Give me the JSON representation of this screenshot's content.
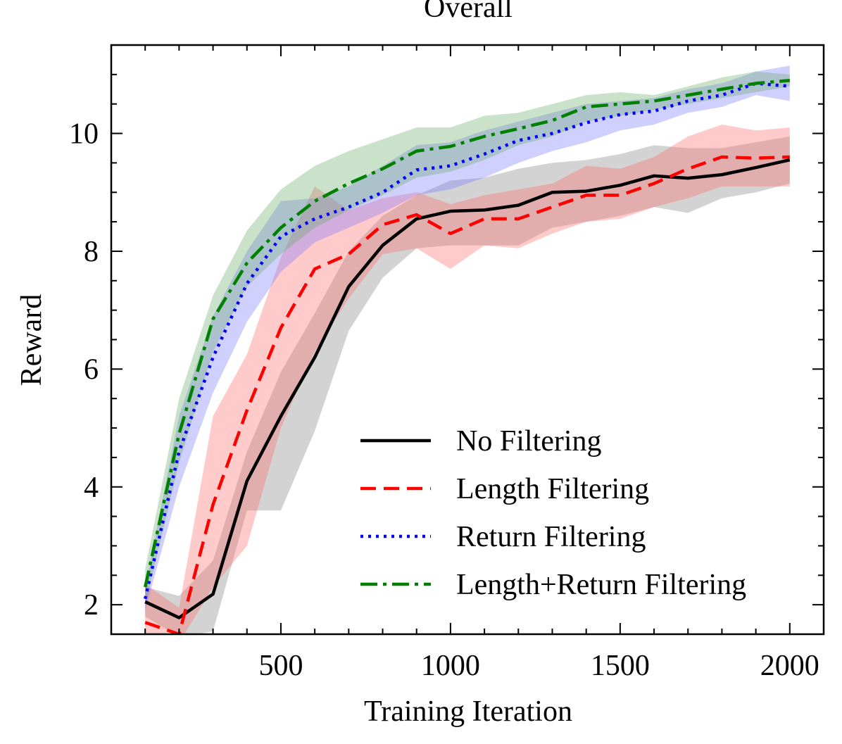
{
  "chart_data": {
    "type": "line",
    "title": "Overall",
    "xlabel": "Training Iteration",
    "ylabel": "Reward",
    "xlim": [
      0,
      2100
    ],
    "ylim": [
      1.5,
      11.5
    ],
    "xticks": [
      500,
      1000,
      1500,
      2000
    ],
    "xtick_labels": [
      "500",
      "1000",
      "1500",
      "2000"
    ],
    "yticks": [
      2,
      4,
      6,
      8,
      10
    ],
    "ytick_labels": [
      "2",
      "4",
      "6",
      "8",
      "10"
    ],
    "grid": false,
    "legend_position": "lower-right",
    "x": [
      100,
      200,
      300,
      400,
      500,
      600,
      700,
      800,
      900,
      1000,
      1100,
      1200,
      1300,
      1400,
      1500,
      1600,
      1700,
      1800,
      1900,
      2000
    ],
    "series": [
      {
        "name": "No Filtering",
        "color": "#000000",
        "band_color": "#808080",
        "style": "solid",
        "values": [
          2.05,
          1.78,
          2.18,
          4.1,
          5.2,
          6.2,
          7.4,
          8.1,
          8.55,
          8.68,
          8.7,
          8.78,
          9.0,
          9.02,
          9.12,
          9.28,
          9.24,
          9.3,
          9.42,
          9.55
        ],
        "upper": [
          2.3,
          2.15,
          2.75,
          4.6,
          5.95,
          6.95,
          8.0,
          8.6,
          8.95,
          9.2,
          9.25,
          9.4,
          9.5,
          9.55,
          9.65,
          9.8,
          9.75,
          9.75,
          9.85,
          9.95
        ],
        "lower": [
          1.8,
          1.45,
          1.55,
          3.6,
          3.6,
          4.95,
          6.65,
          7.55,
          8.05,
          8.1,
          8.1,
          8.1,
          8.4,
          8.5,
          8.6,
          8.75,
          8.65,
          8.9,
          9.0,
          9.15
        ]
      },
      {
        "name": "Length Filtering",
        "color": "#ff0000",
        "band_color": "#ff6666",
        "style": "dashed",
        "values": [
          1.7,
          1.5,
          3.7,
          5.3,
          6.7,
          7.7,
          7.95,
          8.45,
          8.62,
          8.3,
          8.55,
          8.55,
          8.75,
          8.95,
          8.95,
          9.15,
          9.4,
          9.6,
          9.58,
          9.6
        ],
        "upper": [
          2.35,
          1.95,
          5.2,
          6.25,
          7.9,
          9.1,
          8.7,
          8.9,
          9.0,
          8.8,
          8.95,
          9.05,
          9.15,
          9.45,
          9.4,
          9.6,
          9.95,
          10.15,
          10.05,
          10.1
        ],
        "lower": [
          1.4,
          1.35,
          2.3,
          3.0,
          5.0,
          6.3,
          7.2,
          7.95,
          8.05,
          7.7,
          8.1,
          8.05,
          8.3,
          8.5,
          8.55,
          8.75,
          8.9,
          9.1,
          9.1,
          9.1
        ]
      },
      {
        "name": "Return Filtering",
        "color": "#0000ff",
        "band_color": "#7777ff",
        "style": "dotted",
        "values": [
          2.1,
          4.6,
          6.2,
          7.45,
          8.25,
          8.55,
          8.75,
          9.0,
          9.38,
          9.45,
          9.65,
          9.88,
          10.0,
          10.18,
          10.32,
          10.38,
          10.55,
          10.65,
          10.85,
          10.8
        ],
        "upper": [
          2.3,
          5.2,
          6.9,
          8.0,
          8.85,
          8.9,
          9.1,
          9.45,
          9.8,
          9.85,
          10.05,
          10.2,
          10.35,
          10.5,
          10.55,
          10.6,
          10.75,
          10.85,
          11.05,
          11.15
        ],
        "lower": [
          1.9,
          4.0,
          5.6,
          6.8,
          7.65,
          8.15,
          8.4,
          8.65,
          8.95,
          9.05,
          9.25,
          9.5,
          9.7,
          9.85,
          10.05,
          10.15,
          10.35,
          10.45,
          10.65,
          10.55
        ]
      },
      {
        "name": "Length+Return Filtering",
        "color": "#008000",
        "band_color": "#66aa66",
        "style": "dashdot",
        "values": [
          2.3,
          4.9,
          6.85,
          7.8,
          8.4,
          8.85,
          9.15,
          9.4,
          9.7,
          9.78,
          9.95,
          10.08,
          10.22,
          10.45,
          10.5,
          10.55,
          10.65,
          10.75,
          10.85,
          10.9
        ],
        "upper": [
          2.6,
          5.5,
          7.25,
          8.35,
          9.05,
          9.45,
          9.7,
          9.9,
          10.1,
          10.1,
          10.3,
          10.35,
          10.5,
          10.65,
          10.7,
          10.65,
          10.8,
          10.95,
          11.05,
          11.0
        ],
        "lower": [
          2.0,
          4.4,
          6.3,
          7.4,
          7.95,
          8.4,
          8.7,
          8.95,
          9.25,
          9.35,
          9.55,
          9.8,
          9.95,
          10.2,
          10.3,
          10.4,
          10.5,
          10.6,
          10.7,
          10.8
        ]
      }
    ]
  }
}
